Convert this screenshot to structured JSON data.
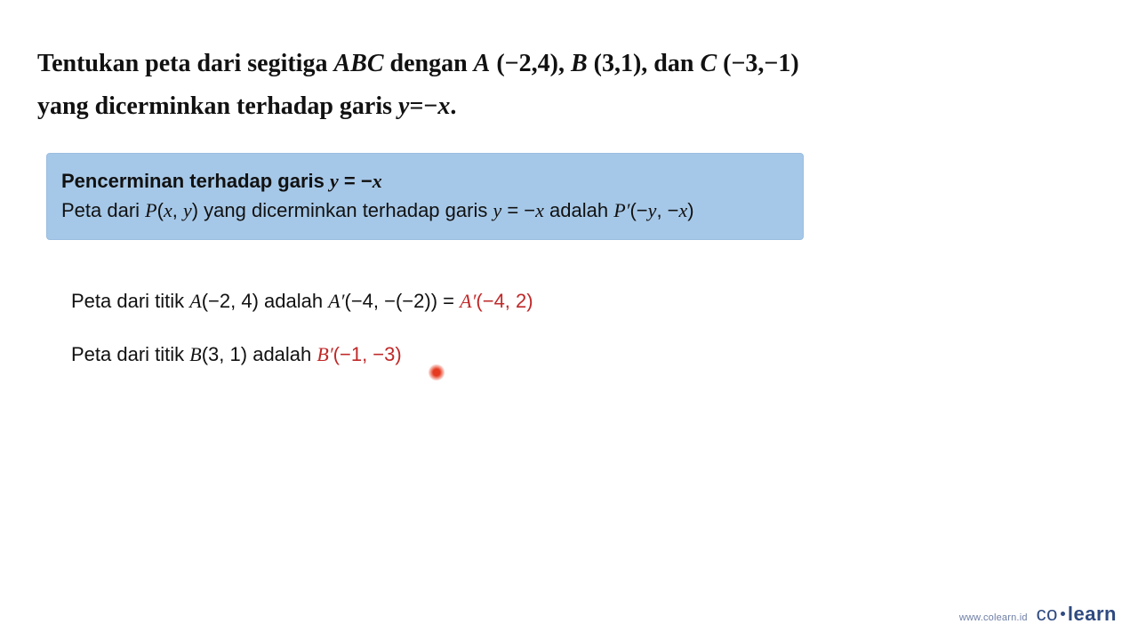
{
  "question": {
    "prefix": "Tentukan peta dari segitiga ",
    "abc": "ABC",
    "mid": " dengan ",
    "A_label": "A",
    "A_coords": " (−2,4), ",
    "B_label": "B",
    "B_coords": " (3,1), dan ",
    "C_label": "C",
    "C_coords": " (−3,−1)",
    "line2_prefix": "yang dicerminkan terhadap garis ",
    "eq_y": "y",
    "eq_eqminus": "=−",
    "eq_x": "x",
    "eq_dot": ".",
    "font_size": 28,
    "color": "#111111"
  },
  "rule_box": {
    "title_prefix": "Pencerminan terhadap garis ",
    "title_y": "y",
    "title_eq": " = −",
    "title_x": "x",
    "body_prefix": "Peta dari ",
    "body_P": "P",
    "body_p_lp": "(",
    "body_p_x": "x",
    "body_p_comma": ", ",
    "body_p_y": "y",
    "body_p_rp": ")",
    "body_mid": " yang dicerminkan terhadap garis ",
    "body_y2": "y",
    "body_eq2": " = −",
    "body_x2": "x",
    "body_is": " adalah ",
    "body_Pp": "P′",
    "body_pp_lp": "(−",
    "body_pp_y": "y",
    "body_pp_comma": ", −",
    "body_pp_x": "x",
    "body_pp_rp": ")",
    "background": "#a6c8e8",
    "font_size": 22
  },
  "line_a": {
    "prefix": "Peta dari titik ",
    "A": "A",
    "A_coords": "(−2, 4)",
    "is": " adalah ",
    "Ap": "A′",
    "Ap_coords": "(−4, −(−2)) = ",
    "Ap_result": "A′",
    "Ap_result_coords": "(−4, 2)",
    "result_color": "#c02828"
  },
  "line_b": {
    "prefix": "Peta dari titik ",
    "B": "B",
    "B_coords": "(3, 1)",
    "is": " adalah ",
    "Bp_result": "B′",
    "Bp_result_coords": "(−1, −3)",
    "result_color": "#c02828"
  },
  "pointer": {
    "color": "#e53a1f"
  },
  "footer": {
    "url": "www.colearn.id",
    "brand_co": "co",
    "brand_learn": "learn",
    "color": "#2f4a80"
  }
}
